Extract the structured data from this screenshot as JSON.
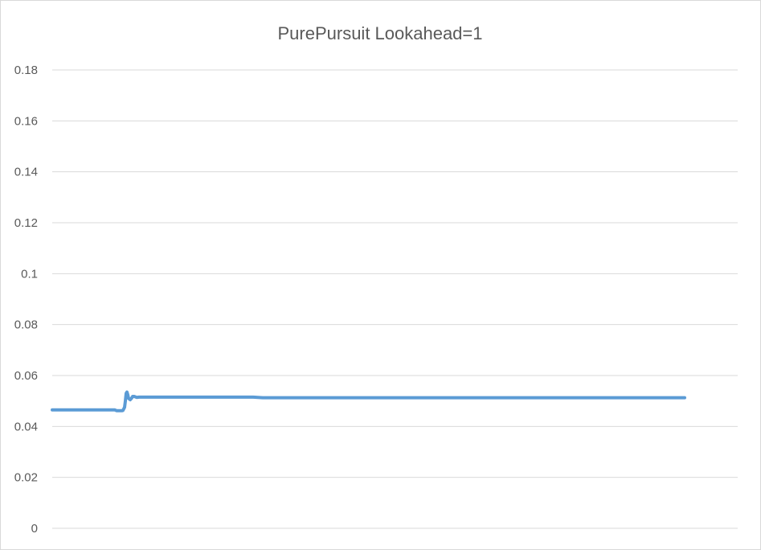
{
  "chart_data": {
    "type": "line",
    "title": "PurePursuit Lookahead=1",
    "xlabel": "",
    "ylabel": "",
    "ylim": [
      0,
      0.18
    ],
    "y_ticks": [
      "0",
      "0.02",
      "0.04",
      "0.06",
      "0.08",
      "0.1",
      "0.12",
      "0.14",
      "0.16",
      "0.18"
    ],
    "grid": true,
    "legend": "none",
    "x_axis_labels_shown": false,
    "line_color": "#5B9BD5",
    "series": [
      {
        "x": [
          0,
          30,
          78,
          80,
          83,
          85,
          87,
          88,
          90,
          91,
          92,
          93,
          94,
          95,
          97,
          99,
          100,
          102,
          105,
          108,
          110,
          112,
          115,
          120,
          140,
          160,
          180,
          200,
          210,
          220,
          250,
          262,
          268,
          270,
          272,
          274,
          276,
          277,
          278,
          279,
          280,
          281,
          282,
          283,
          285,
          287,
          289,
          290,
          291,
          292,
          294,
          296,
          298,
          300,
          310,
          320,
          340,
          360,
          380,
          390,
          420,
          422,
          424,
          426,
          427,
          428,
          429,
          430,
          431,
          432,
          433,
          435,
          436,
          437,
          438,
          440,
          442,
          444,
          446,
          450,
          460,
          480,
          500,
          520,
          540,
          560,
          574,
          578,
          580,
          582,
          584,
          586,
          587,
          588,
          589,
          590,
          591,
          592,
          593,
          594,
          595,
          596,
          597,
          598,
          600,
          602,
          604,
          606,
          610,
          620,
          640,
          660,
          680,
          700,
          720,
          740,
          760,
          780,
          787
        ],
        "y": [
          0.0465,
          0.0465,
          0.0465,
          0.0462,
          0.0462,
          0.0462,
          0.0462,
          0.0463,
          0.0475,
          0.05,
          0.053,
          0.0535,
          0.0525,
          0.051,
          0.0505,
          0.0512,
          0.0518,
          0.0518,
          0.0514,
          0.0515,
          0.0515,
          0.0515,
          0.0515,
          0.0515,
          0.0515,
          0.0515,
          0.0515,
          0.0515,
          0.0515,
          0.0515,
          0.0515,
          0.0513,
          0.0513,
          0.0513,
          0.0513,
          0.0513,
          0.0513,
          0.0513,
          0.0513,
          0.0513,
          0.0513,
          0.0513,
          0.0513,
          0.0513,
          0.0513,
          0.0513,
          0.0513,
          0.0513,
          0.0513,
          0.0513,
          0.0513,
          0.0513,
          0.0513,
          0.0513,
          0.0513,
          0.0513,
          0.0513,
          0.0513,
          0.0513,
          0.0513,
          0.0513,
          0.0513,
          0.0513,
          0.0513,
          0.0513,
          0.0513,
          0.0513,
          0.0513,
          0.0513,
          0.0513,
          0.0513,
          0.0513,
          0.0513,
          0.0513,
          0.0513,
          0.0513,
          0.0513,
          0.0513,
          0.0513,
          0.0513,
          0.0513,
          0.0513,
          0.0513,
          0.0513,
          0.0513,
          0.0513,
          0.0513,
          0.0513,
          0.0513,
          0.0513,
          0.0513,
          0.0513,
          0.0513,
          0.0513,
          0.0513,
          0.0513,
          0.0513,
          0.0513,
          0.0513,
          0.0513,
          0.0513,
          0.0513,
          0.0513,
          0.0513,
          0.0513,
          0.0513,
          0.0513,
          0.0513,
          0.0513,
          0.0513,
          0.0513,
          0.0513,
          0.0513,
          0.0513,
          0.0513,
          0.0513,
          0.0513,
          0.0513,
          0.0513
        ]
      }
    ]
  }
}
